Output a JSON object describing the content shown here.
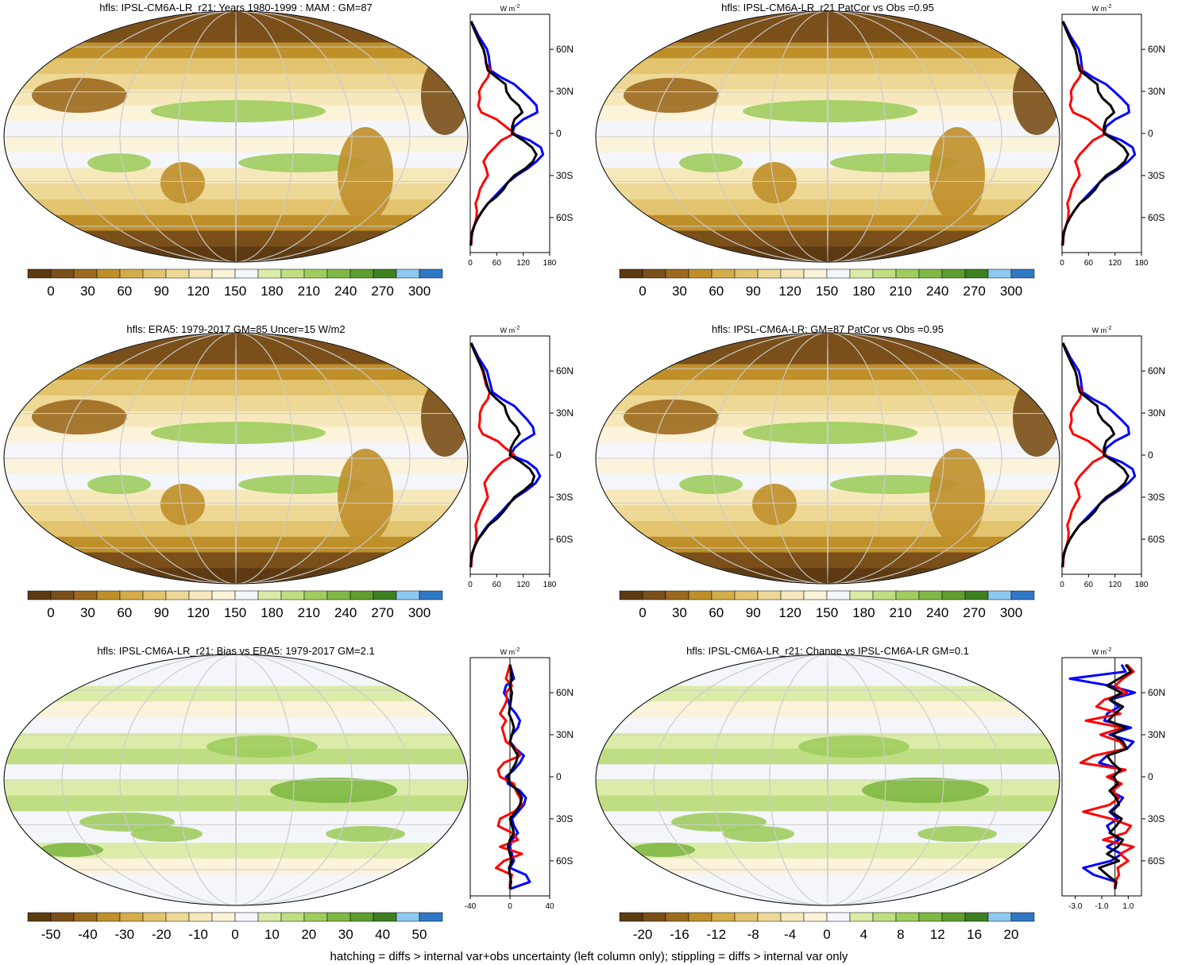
{
  "footnote": "hatching = diffs > internal var+obs uncertainty (left column only); stippling = diffs > internal var only",
  "profile_units": "W m",
  "profile_units_exp": "-2",
  "colors": {
    "model_line": "#000000",
    "obs_line": "#ff0000",
    "other_line": "#0000ff",
    "land_outline": "#000000"
  },
  "abs_palette": [
    "#5e3a12",
    "#7a4f1a",
    "#9c6a1f",
    "#bf8f2a",
    "#d4ac49",
    "#e3c46e",
    "#eed896",
    "#f6e8bb",
    "#fbf3da",
    "#f4f6fb",
    "#dbeca8",
    "#bfdd82",
    "#9fcd5e",
    "#7fb844",
    "#5e9e2f",
    "#3e7f22",
    "#8cc8ef",
    "#2e78c6"
  ],
  "diff_palette": [
    "#5e3a12",
    "#7a4f1a",
    "#9c6a1f",
    "#bf8f2a",
    "#d4ac49",
    "#e3c46e",
    "#eed896",
    "#f6e8bb",
    "#fbf3da",
    "#f4f6fb",
    "#dbeca8",
    "#bfdd82",
    "#9fcd5e",
    "#7fb844",
    "#5e9e2f",
    "#3e7f22",
    "#8cc8ef",
    "#2e78c6"
  ],
  "chart_data": [
    {
      "type": "heatmap",
      "title": "hfls: IPSL-CM6A-LR_r21: Years 1980-1999 : MAM : GM=87",
      "colorbar_ticks": [
        "0",
        "30",
        "60",
        "90",
        "120",
        "150",
        "180",
        "210",
        "240",
        "270",
        "300"
      ],
      "lat_ticks": [
        "60N",
        "30N",
        "0",
        "30S",
        "60S"
      ],
      "profile_xticks": [
        "0",
        "60",
        "120",
        "180"
      ],
      "profile_xrange": [
        0,
        180
      ],
      "lat_range": [
        -85,
        85
      ],
      "profile_series": {
        "lat": [
          80,
          75,
          70,
          65,
          60,
          55,
          50,
          45,
          40,
          35,
          30,
          25,
          20,
          15,
          10,
          5,
          0,
          -5,
          -10,
          -15,
          -20,
          -25,
          -30,
          -35,
          -40,
          -45,
          -50,
          -55,
          -60,
          -65,
          -70,
          -75,
          -80
        ],
        "black": [
          2,
          8,
          15,
          22,
          30,
          34,
          36,
          40,
          60,
          80,
          82,
          92,
          110,
          118,
          100,
          95,
          95,
          120,
          140,
          150,
          142,
          125,
          100,
          85,
          75,
          60,
          40,
          28,
          18,
          10,
          5,
          2,
          1
        ],
        "red": [
          2,
          8,
          15,
          22,
          30,
          34,
          36,
          45,
          40,
          28,
          20,
          22,
          18,
          25,
          60,
          80,
          100,
          70,
          55,
          40,
          30,
          36,
          40,
          30,
          22,
          18,
          12,
          15,
          14,
          10,
          4,
          3,
          2
        ],
        "blue": [
          2,
          10,
          18,
          28,
          38,
          42,
          44,
          46,
          70,
          100,
          118,
          135,
          150,
          152,
          120,
          100,
          95,
          135,
          160,
          165,
          150,
          130,
          105,
          85,
          70,
          55,
          40,
          28,
          18,
          10,
          5,
          2,
          1
        ]
      }
    },
    {
      "type": "heatmap",
      "title": "hfls: IPSL-CM6A-LR_r21 PatCor vs Obs =0.95",
      "colorbar_ticks": [
        "0",
        "30",
        "60",
        "90",
        "120",
        "150",
        "180",
        "210",
        "240",
        "270",
        "300"
      ],
      "lat_ticks": [
        "60N",
        "30N",
        "0",
        "30S",
        "60S"
      ],
      "profile_xticks": [
        "0",
        "60",
        "120",
        "180"
      ],
      "profile_xrange": [
        0,
        180
      ],
      "lat_range": [
        -85,
        85
      ],
      "profile_series": {
        "lat": [
          80,
          75,
          70,
          65,
          60,
          55,
          50,
          45,
          40,
          35,
          30,
          25,
          20,
          15,
          10,
          5,
          0,
          -5,
          -10,
          -15,
          -20,
          -25,
          -30,
          -35,
          -40,
          -45,
          -50,
          -55,
          -60,
          -65,
          -70,
          -75,
          -80
        ],
        "black": [
          2,
          8,
          15,
          22,
          30,
          34,
          36,
          40,
          60,
          80,
          82,
          92,
          110,
          118,
          100,
          95,
          95,
          120,
          140,
          150,
          142,
          125,
          100,
          85,
          75,
          60,
          40,
          28,
          18,
          10,
          5,
          2,
          1
        ],
        "red": [
          2,
          8,
          15,
          22,
          30,
          34,
          36,
          45,
          40,
          28,
          20,
          22,
          18,
          25,
          60,
          80,
          100,
          70,
          55,
          40,
          30,
          36,
          40,
          30,
          22,
          18,
          12,
          15,
          14,
          10,
          4,
          3,
          2
        ],
        "blue": [
          2,
          10,
          18,
          28,
          38,
          42,
          44,
          46,
          70,
          100,
          118,
          135,
          150,
          152,
          120,
          100,
          95,
          135,
          160,
          165,
          150,
          130,
          105,
          85,
          70,
          55,
          40,
          28,
          18,
          10,
          5,
          2,
          1
        ]
      }
    },
    {
      "type": "heatmap",
      "title": "hfls: ERA5: 1979-2017 GM=85 Uncer=15 W/m2",
      "colorbar_ticks": [
        "0",
        "30",
        "60",
        "90",
        "120",
        "150",
        "180",
        "210",
        "240",
        "270",
        "300"
      ],
      "lat_ticks": [
        "60N",
        "30N",
        "0",
        "30S",
        "60S"
      ],
      "profile_xticks": [
        "0",
        "60",
        "120",
        "180"
      ],
      "profile_xrange": [
        0,
        180
      ],
      "lat_range": [
        -85,
        85
      ],
      "profile_series": {
        "lat": [
          80,
          75,
          70,
          65,
          60,
          55,
          50,
          45,
          40,
          35,
          30,
          25,
          20,
          15,
          10,
          5,
          0,
          -5,
          -10,
          -15,
          -20,
          -25,
          -30,
          -35,
          -40,
          -45,
          -50,
          -55,
          -60,
          -65,
          -70,
          -75,
          -80
        ],
        "black": [
          2,
          8,
          15,
          22,
          30,
          34,
          38,
          44,
          60,
          78,
          82,
          90,
          105,
          112,
          100,
          92,
          90,
          115,
          135,
          145,
          140,
          122,
          100,
          88,
          76,
          62,
          42,
          30,
          18,
          10,
          5,
          2,
          1
        ],
        "red": [
          2,
          8,
          15,
          22,
          28,
          32,
          36,
          44,
          40,
          28,
          22,
          22,
          20,
          28,
          62,
          80,
          100,
          72,
          55,
          42,
          32,
          36,
          40,
          32,
          24,
          18,
          12,
          14,
          14,
          10,
          4,
          3,
          2
        ],
        "blue": [
          2,
          10,
          18,
          28,
          38,
          42,
          46,
          50,
          72,
          100,
          115,
          130,
          142,
          145,
          118,
          100,
          92,
          130,
          150,
          158,
          148,
          128,
          104,
          86,
          72,
          56,
          40,
          28,
          18,
          10,
          5,
          2,
          1
        ]
      }
    },
    {
      "type": "heatmap",
      "title": "hfls: IPSL-CM6A-LR: GM=87 PatCor vs Obs =0.95",
      "colorbar_ticks": [
        "0",
        "30",
        "60",
        "90",
        "120",
        "150",
        "180",
        "210",
        "240",
        "270",
        "300"
      ],
      "lat_ticks": [
        "60N",
        "30N",
        "0",
        "30S",
        "60S"
      ],
      "profile_xticks": [
        "0",
        "60",
        "120",
        "180"
      ],
      "profile_xrange": [
        0,
        180
      ],
      "lat_range": [
        -85,
        85
      ],
      "profile_series": {
        "lat": [
          80,
          75,
          70,
          65,
          60,
          55,
          50,
          45,
          40,
          35,
          30,
          25,
          20,
          15,
          10,
          5,
          0,
          -5,
          -10,
          -15,
          -20,
          -25,
          -30,
          -35,
          -40,
          -45,
          -50,
          -55,
          -60,
          -65,
          -70,
          -75,
          -80
        ],
        "black": [
          2,
          8,
          15,
          22,
          30,
          34,
          36,
          40,
          60,
          80,
          82,
          92,
          110,
          118,
          100,
          95,
          95,
          120,
          140,
          150,
          142,
          125,
          100,
          85,
          75,
          60,
          40,
          28,
          18,
          10,
          5,
          2,
          1
        ],
        "red": [
          2,
          8,
          15,
          22,
          30,
          34,
          36,
          45,
          40,
          28,
          20,
          22,
          18,
          25,
          60,
          80,
          100,
          70,
          55,
          40,
          30,
          36,
          40,
          30,
          22,
          18,
          12,
          15,
          14,
          10,
          4,
          3,
          2
        ],
        "blue": [
          2,
          10,
          18,
          28,
          38,
          42,
          44,
          46,
          70,
          100,
          118,
          135,
          150,
          152,
          120,
          100,
          95,
          135,
          160,
          165,
          150,
          130,
          105,
          85,
          70,
          55,
          40,
          28,
          18,
          10,
          5,
          2,
          1
        ]
      }
    },
    {
      "type": "heatmap",
      "title": "hfls: IPSL-CM6A-LR_r21: Bias vs ERA5: 1979-2017 GM=2.1",
      "colorbar_ticks": [
        "-50",
        "-40",
        "-30",
        "-20",
        "-10",
        "0",
        "10",
        "20",
        "30",
        "40",
        "50"
      ],
      "lat_ticks": [
        "60N",
        "30N",
        "0",
        "30S",
        "60S"
      ],
      "profile_xticks": [
        "-40",
        "0",
        "40"
      ],
      "profile_xrange": [
        -40,
        40
      ],
      "lat_range": [
        -85,
        85
      ],
      "profile_series": {
        "lat": [
          80,
          75,
          70,
          65,
          60,
          55,
          50,
          45,
          40,
          35,
          30,
          25,
          20,
          15,
          10,
          5,
          0,
          -5,
          -10,
          -15,
          -20,
          -25,
          -30,
          -35,
          -40,
          -45,
          -50,
          -55,
          -60,
          -65,
          -70,
          -75,
          -80
        ],
        "black": [
          0,
          1,
          2,
          0,
          2,
          1,
          0,
          -1,
          2,
          4,
          2,
          0,
          4,
          8,
          6,
          2,
          -2,
          0,
          8,
          12,
          10,
          6,
          0,
          2,
          4,
          0,
          -2,
          0,
          2,
          -1,
          0,
          1,
          0
        ],
        "red": [
          0,
          -2,
          -4,
          2,
          -4,
          -3,
          -6,
          -10,
          -4,
          -8,
          -6,
          -4,
          6,
          10,
          -6,
          -12,
          -10,
          4,
          6,
          10,
          12,
          4,
          -10,
          -12,
          2,
          8,
          -10,
          12,
          -6,
          -14,
          2,
          0,
          0
        ],
        "blue": [
          0,
          2,
          4,
          -4,
          -6,
          -2,
          0,
          6,
          10,
          8,
          2,
          0,
          6,
          14,
          10,
          4,
          -4,
          -2,
          10,
          16,
          14,
          8,
          2,
          4,
          8,
          2,
          0,
          2,
          4,
          0,
          16,
          20,
          0
        ]
      }
    },
    {
      "type": "heatmap",
      "title": "hfls: IPSL-CM6A-LR_r21: Change vs IPSL-CM6A-LR GM=0.1",
      "colorbar_ticks": [
        "-20",
        "-16",
        "-12",
        "-8",
        "-4",
        "0",
        "4",
        "8",
        "12",
        "16",
        "20"
      ],
      "lat_ticks": [
        "60N",
        "30N",
        "0",
        "30S",
        "60S"
      ],
      "profile_xticks": [
        "-3.0",
        "-1.0",
        "1.0"
      ],
      "profile_xrange": [
        -4,
        2
      ],
      "lat_range": [
        -85,
        85
      ],
      "profile_series": {
        "lat": [
          80,
          75,
          70,
          65,
          60,
          55,
          50,
          45,
          40,
          35,
          30,
          25,
          20,
          15,
          10,
          5,
          0,
          -5,
          -10,
          -15,
          -20,
          -25,
          -30,
          -35,
          -40,
          -45,
          -50,
          -55,
          -60,
          -65,
          -70,
          -75,
          -80
        ],
        "black": [
          0.8,
          1.2,
          0.3,
          -0.6,
          0.5,
          -0.4,
          0.6,
          0.0,
          -0.5,
          0.8,
          -0.2,
          0.6,
          0.9,
          -0.6,
          -0.2,
          0.4,
          -0.1,
          0.2,
          -0.4,
          0.1,
          0.3,
          -0.3,
          0.5,
          0.1,
          -0.4,
          0.6,
          0.2,
          -0.6,
          0.3,
          -1.2,
          -0.6,
          0.1,
          0.0
        ],
        "red": [
          0.9,
          1.4,
          0.6,
          0.0,
          0.9,
          -0.8,
          -1.4,
          0.4,
          -2.2,
          0.6,
          -1.1,
          0.4,
          0.8,
          -1.6,
          -2.6,
          0.8,
          -0.6,
          0.5,
          -0.2,
          0.3,
          -0.4,
          -2.4,
          -0.3,
          1.2,
          0.8,
          -0.9,
          1.4,
          0.4,
          1.0,
          0.2,
          0.3,
          0.0,
          0.0
        ],
        "blue": [
          0.5,
          0.8,
          -3.4,
          -0.4,
          1.5,
          -0.4,
          0.3,
          -0.6,
          -0.8,
          1.2,
          -0.4,
          1.4,
          0.9,
          -0.6,
          -1.2,
          0.6,
          -0.4,
          0.3,
          -0.4,
          0.6,
          0.2,
          -0.4,
          0.2,
          -0.6,
          -0.3,
          0.3,
          -0.6,
          0.5,
          -0.3,
          -2.4,
          -1.6,
          0.1,
          0.0
        ]
      }
    }
  ]
}
